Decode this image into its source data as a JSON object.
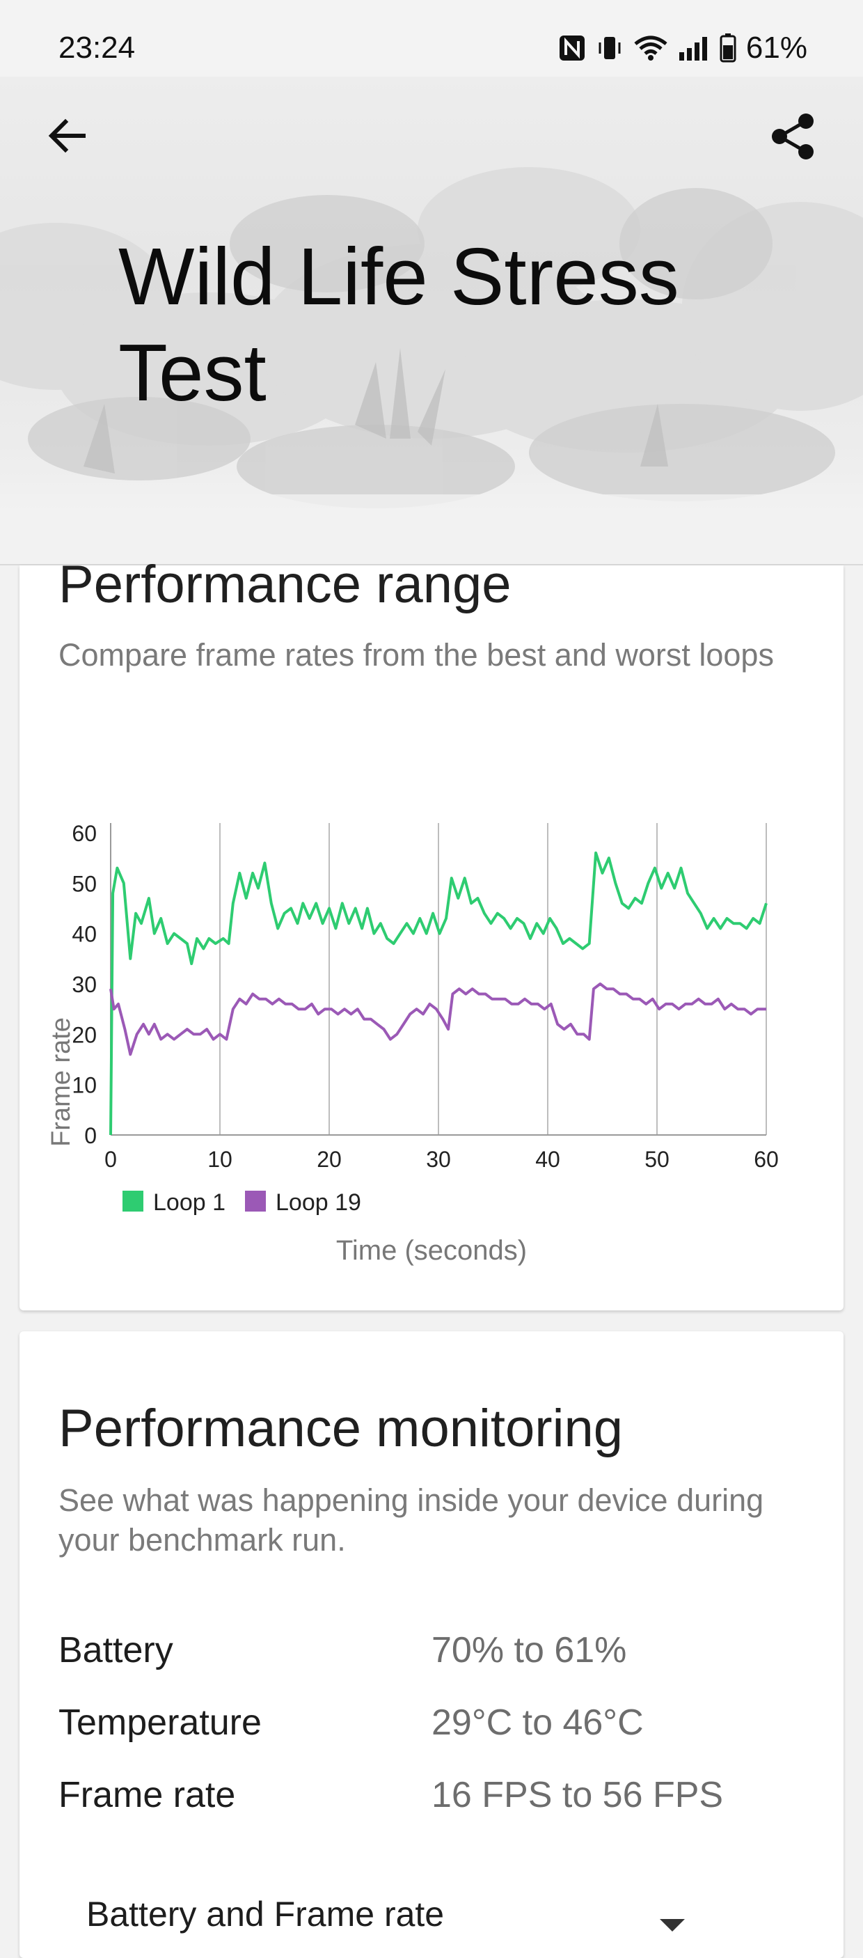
{
  "status_bar": {
    "time": "23:24",
    "battery_percent": "61%",
    "icons": [
      "nfc-icon",
      "vibrate-icon",
      "wifi-icon",
      "signal-icon",
      "battery-icon"
    ]
  },
  "header": {
    "title": "Wild Life Stress Test",
    "back_icon": "arrow-back-icon",
    "share_icon": "share-icon"
  },
  "performance_range": {
    "title": "Performance range",
    "subtitle": "Compare frame rates from the best and worst loops"
  },
  "chart_data": {
    "type": "line",
    "xlabel": "Time (seconds)",
    "ylabel": "Frame rate",
    "xlim": [
      0,
      60
    ],
    "ylim": [
      0,
      60
    ],
    "x_ticks": [
      "0",
      "10",
      "20",
      "30",
      "40",
      "50",
      "60"
    ],
    "y_ticks": [
      "0",
      "10",
      "20",
      "30",
      "40",
      "50",
      "60"
    ],
    "grid": "vertical",
    "legend_position": "bottom-left",
    "series": [
      {
        "name": "Loop 1",
        "color": "#2ecc71",
        "points": [
          [
            0,
            0
          ],
          [
            0.2,
            48
          ],
          [
            0.6,
            53
          ],
          [
            1.2,
            50
          ],
          [
            1.8,
            35
          ],
          [
            2.3,
            44
          ],
          [
            2.8,
            42
          ],
          [
            3.5,
            47
          ],
          [
            4,
            40
          ],
          [
            4.6,
            43
          ],
          [
            5.2,
            38
          ],
          [
            5.8,
            40
          ],
          [
            6.4,
            39
          ],
          [
            7,
            38
          ],
          [
            7.4,
            34
          ],
          [
            7.9,
            39
          ],
          [
            8.5,
            37
          ],
          [
            9,
            39
          ],
          [
            9.6,
            38
          ],
          [
            10.3,
            39
          ],
          [
            10.8,
            38
          ],
          [
            11.2,
            46
          ],
          [
            11.8,
            52
          ],
          [
            12.4,
            47
          ],
          [
            13,
            52
          ],
          [
            13.5,
            49
          ],
          [
            14.1,
            54
          ],
          [
            14.7,
            46
          ],
          [
            15.3,
            41
          ],
          [
            15.9,
            44
          ],
          [
            16.5,
            45
          ],
          [
            17.1,
            42
          ],
          [
            17.6,
            46
          ],
          [
            18.2,
            43
          ],
          [
            18.8,
            46
          ],
          [
            19.4,
            42
          ],
          [
            20,
            45
          ],
          [
            20.6,
            41
          ],
          [
            21.2,
            46
          ],
          [
            21.8,
            42
          ],
          [
            22.4,
            45
          ],
          [
            23,
            41
          ],
          [
            23.5,
            45
          ],
          [
            24.1,
            40
          ],
          [
            24.7,
            42
          ],
          [
            25.3,
            39
          ],
          [
            25.9,
            38
          ],
          [
            26.5,
            40
          ],
          [
            27.1,
            42
          ],
          [
            27.7,
            40
          ],
          [
            28.3,
            43
          ],
          [
            28.9,
            40
          ],
          [
            29.5,
            44
          ],
          [
            30.1,
            40
          ],
          [
            30.7,
            43
          ],
          [
            31.2,
            51
          ],
          [
            31.8,
            47
          ],
          [
            32.4,
            51
          ],
          [
            33,
            46
          ],
          [
            33.6,
            47
          ],
          [
            34.2,
            44
          ],
          [
            34.8,
            42
          ],
          [
            35.4,
            44
          ],
          [
            36,
            43
          ],
          [
            36.6,
            41
          ],
          [
            37.2,
            43
          ],
          [
            37.8,
            42
          ],
          [
            38.4,
            39
          ],
          [
            39,
            42
          ],
          [
            39.6,
            40
          ],
          [
            40.2,
            43
          ],
          [
            40.8,
            41
          ],
          [
            41.4,
            38
          ],
          [
            42,
            39
          ],
          [
            42.6,
            38
          ],
          [
            43.2,
            37
          ],
          [
            43.8,
            38
          ],
          [
            44.4,
            56
          ],
          [
            45,
            52
          ],
          [
            45.6,
            55
          ],
          [
            46.2,
            50
          ],
          [
            46.8,
            46
          ],
          [
            47.4,
            45
          ],
          [
            48,
            47
          ],
          [
            48.6,
            46
          ],
          [
            49.2,
            50
          ],
          [
            49.8,
            53
          ],
          [
            50.4,
            49
          ],
          [
            51,
            52
          ],
          [
            51.6,
            49
          ],
          [
            52.2,
            53
          ],
          [
            52.8,
            48
          ],
          [
            53.4,
            46
          ],
          [
            54,
            44
          ],
          [
            54.6,
            41
          ],
          [
            55.2,
            43
          ],
          [
            55.8,
            41
          ],
          [
            56.4,
            43
          ],
          [
            57,
            42
          ],
          [
            57.6,
            42
          ],
          [
            58.2,
            41
          ],
          [
            58.8,
            43
          ],
          [
            59.4,
            42
          ],
          [
            60,
            46
          ]
        ]
      },
      {
        "name": "Loop 19",
        "color": "#9b59b6",
        "points": [
          [
            0,
            29
          ],
          [
            0.3,
            25
          ],
          [
            0.7,
            26
          ],
          [
            1.3,
            21
          ],
          [
            1.8,
            16
          ],
          [
            2.4,
            20
          ],
          [
            3,
            22
          ],
          [
            3.5,
            20
          ],
          [
            4,
            22
          ],
          [
            4.6,
            19
          ],
          [
            5.2,
            20
          ],
          [
            5.8,
            19
          ],
          [
            6.4,
            20
          ],
          [
            7,
            21
          ],
          [
            7.6,
            20
          ],
          [
            8.2,
            20
          ],
          [
            8.8,
            21
          ],
          [
            9.4,
            19
          ],
          [
            10,
            20
          ],
          [
            10.6,
            19
          ],
          [
            11.2,
            25
          ],
          [
            11.8,
            27
          ],
          [
            12.4,
            26
          ],
          [
            13,
            28
          ],
          [
            13.6,
            27
          ],
          [
            14.2,
            27
          ],
          [
            14.8,
            26
          ],
          [
            15.4,
            27
          ],
          [
            16,
            26
          ],
          [
            16.6,
            26
          ],
          [
            17.2,
            25
          ],
          [
            17.8,
            25
          ],
          [
            18.4,
            26
          ],
          [
            19,
            24
          ],
          [
            19.6,
            25
          ],
          [
            20.2,
            25
          ],
          [
            20.8,
            24
          ],
          [
            21.4,
            25
          ],
          [
            22,
            24
          ],
          [
            22.6,
            25
          ],
          [
            23.2,
            23
          ],
          [
            23.8,
            23
          ],
          [
            24.4,
            22
          ],
          [
            25,
            21
          ],
          [
            25.6,
            19
          ],
          [
            26.2,
            20
          ],
          [
            26.8,
            22
          ],
          [
            27.4,
            24
          ],
          [
            28,
            25
          ],
          [
            28.6,
            24
          ],
          [
            29.2,
            26
          ],
          [
            29.8,
            25
          ],
          [
            30.4,
            23
          ],
          [
            30.9,
            21
          ],
          [
            31.3,
            28
          ],
          [
            31.9,
            29
          ],
          [
            32.5,
            28
          ],
          [
            33.1,
            29
          ],
          [
            33.7,
            28
          ],
          [
            34.3,
            28
          ],
          [
            34.9,
            27
          ],
          [
            35.5,
            27
          ],
          [
            36.1,
            27
          ],
          [
            36.7,
            26
          ],
          [
            37.3,
            26
          ],
          [
            37.9,
            27
          ],
          [
            38.5,
            26
          ],
          [
            39.1,
            26
          ],
          [
            39.7,
            25
          ],
          [
            40.3,
            26
          ],
          [
            40.9,
            22
          ],
          [
            41.5,
            21
          ],
          [
            42.1,
            22
          ],
          [
            42.7,
            20
          ],
          [
            43.3,
            20
          ],
          [
            43.8,
            19
          ],
          [
            44.2,
            29
          ],
          [
            44.8,
            30
          ],
          [
            45.4,
            29
          ],
          [
            46,
            29
          ],
          [
            46.6,
            28
          ],
          [
            47.2,
            28
          ],
          [
            47.8,
            27
          ],
          [
            48.4,
            27
          ],
          [
            49,
            26
          ],
          [
            49.6,
            27
          ],
          [
            50.2,
            25
          ],
          [
            50.8,
            26
          ],
          [
            51.4,
            26
          ],
          [
            52,
            25
          ],
          [
            52.6,
            26
          ],
          [
            53.2,
            26
          ],
          [
            53.8,
            27
          ],
          [
            54.4,
            26
          ],
          [
            55,
            26
          ],
          [
            55.6,
            27
          ],
          [
            56.2,
            25
          ],
          [
            56.8,
            26
          ],
          [
            57.4,
            25
          ],
          [
            58,
            25
          ],
          [
            58.6,
            24
          ],
          [
            59.2,
            25
          ],
          [
            60,
            25
          ]
        ]
      }
    ]
  },
  "performance_monitoring": {
    "title": "Performance monitoring",
    "subtitle": "See what was happening inside your device during your benchmark run.",
    "rows": [
      {
        "label": "Battery",
        "value": "70% to 61%"
      },
      {
        "label": "Temperature",
        "value": "29°C to 46°C"
      },
      {
        "label": "Frame rate",
        "value": "16 FPS to 56 FPS"
      }
    ],
    "dropdown_selected": "Battery and Frame rate"
  }
}
